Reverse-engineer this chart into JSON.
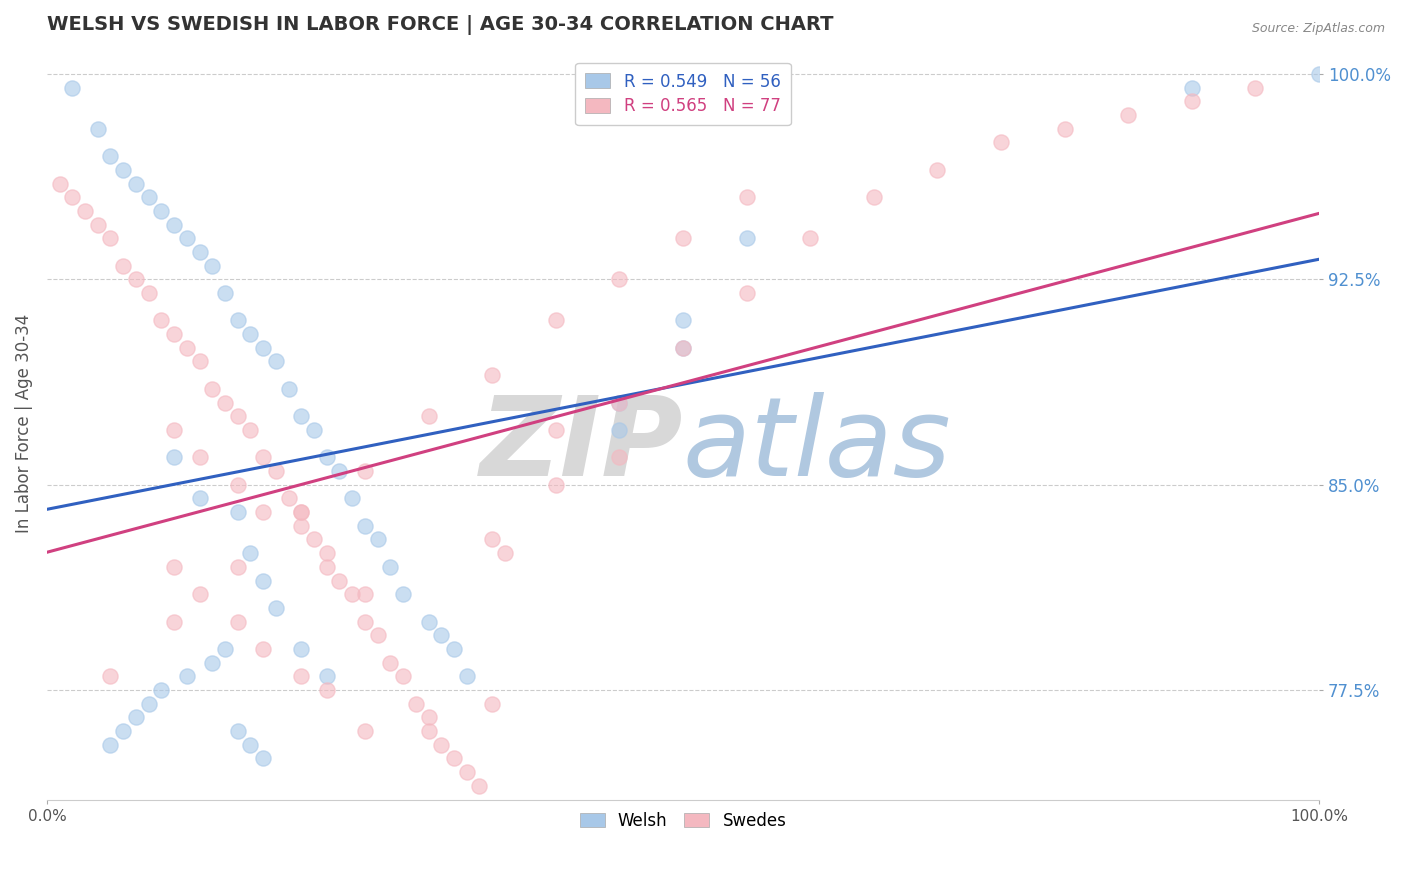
{
  "title": "WELSH VS SWEDISH IN LABOR FORCE | AGE 30-34 CORRELATION CHART",
  "source": "Source: ZipAtlas.com",
  "ylabel": "In Labor Force | Age 30-34",
  "xlim": [
    0.0,
    1.0
  ],
  "ylim": [
    0.735,
    1.01
  ],
  "yticks": [
    0.775,
    0.85,
    0.925,
    1.0
  ],
  "ytick_labels": [
    "77.5%",
    "85.0%",
    "92.5%",
    "100.0%"
  ],
  "xtick_labels_show": [
    "0.0%",
    "100.0%"
  ],
  "xtick_pos_show": [
    0.0,
    1.0
  ],
  "welsh_color": "#a8c8e8",
  "swedes_color": "#f4b8c0",
  "welsh_line_color": "#3060c0",
  "swedes_line_color": "#d04080",
  "welsh_R": 0.549,
  "welsh_N": 56,
  "swedes_R": 0.565,
  "swedes_N": 77,
  "watermark_zip_color": "#d8d8d8",
  "watermark_atlas_color": "#b0c8e0",
  "background_color": "#ffffff",
  "grid_color": "#cccccc",
  "ytick_color": "#5090d0",
  "welsh_x": [
    0.02,
    0.04,
    0.05,
    0.06,
    0.07,
    0.08,
    0.09,
    0.1,
    0.11,
    0.12,
    0.13,
    0.14,
    0.15,
    0.16,
    0.17,
    0.18,
    0.19,
    0.2,
    0.21,
    0.22,
    0.23,
    0.24,
    0.25,
    0.26,
    0.27,
    0.28,
    0.3,
    0.31,
    0.32,
    0.33,
    0.1,
    0.12,
    0.15,
    0.16,
    0.17,
    0.18,
    0.2,
    0.22,
    0.14,
    0.13,
    0.11,
    0.09,
    0.08,
    0.07,
    0.06,
    0.05,
    0.15,
    0.16,
    0.17,
    0.45,
    0.5,
    0.45,
    0.5,
    0.55,
    0.9,
    1.0
  ],
  "welsh_y": [
    0.995,
    0.98,
    0.97,
    0.965,
    0.96,
    0.955,
    0.95,
    0.945,
    0.94,
    0.935,
    0.93,
    0.92,
    0.91,
    0.905,
    0.9,
    0.895,
    0.885,
    0.875,
    0.87,
    0.86,
    0.855,
    0.845,
    0.835,
    0.83,
    0.82,
    0.81,
    0.8,
    0.795,
    0.79,
    0.78,
    0.86,
    0.845,
    0.84,
    0.825,
    0.815,
    0.805,
    0.79,
    0.78,
    0.79,
    0.785,
    0.78,
    0.775,
    0.77,
    0.765,
    0.76,
    0.755,
    0.76,
    0.755,
    0.75,
    0.88,
    0.91,
    0.87,
    0.9,
    0.94,
    0.995,
    1.0
  ],
  "swedes_x": [
    0.01,
    0.02,
    0.03,
    0.04,
    0.05,
    0.06,
    0.07,
    0.08,
    0.09,
    0.1,
    0.11,
    0.12,
    0.13,
    0.14,
    0.15,
    0.16,
    0.17,
    0.18,
    0.19,
    0.2,
    0.21,
    0.22,
    0.23,
    0.24,
    0.25,
    0.26,
    0.27,
    0.28,
    0.29,
    0.3,
    0.31,
    0.32,
    0.33,
    0.34,
    0.35,
    0.36,
    0.1,
    0.12,
    0.15,
    0.17,
    0.2,
    0.22,
    0.25,
    0.1,
    0.12,
    0.15,
    0.17,
    0.2,
    0.22,
    0.25,
    0.3,
    0.35,
    0.4,
    0.4,
    0.45,
    0.45,
    0.5,
    0.55,
    0.6,
    0.65,
    0.7,
    0.75,
    0.8,
    0.85,
    0.9,
    0.95,
    0.05,
    0.1,
    0.15,
    0.2,
    0.25,
    0.3,
    0.35,
    0.4,
    0.45,
    0.5,
    0.55
  ],
  "swedes_y": [
    0.96,
    0.955,
    0.95,
    0.945,
    0.94,
    0.93,
    0.925,
    0.92,
    0.91,
    0.905,
    0.9,
    0.895,
    0.885,
    0.88,
    0.875,
    0.87,
    0.86,
    0.855,
    0.845,
    0.84,
    0.83,
    0.825,
    0.815,
    0.81,
    0.8,
    0.795,
    0.785,
    0.78,
    0.77,
    0.765,
    0.755,
    0.75,
    0.745,
    0.74,
    0.83,
    0.825,
    0.87,
    0.86,
    0.85,
    0.84,
    0.835,
    0.82,
    0.81,
    0.82,
    0.81,
    0.8,
    0.79,
    0.78,
    0.775,
    0.76,
    0.76,
    0.77,
    0.87,
    0.85,
    0.88,
    0.86,
    0.9,
    0.92,
    0.94,
    0.955,
    0.965,
    0.975,
    0.98,
    0.985,
    0.99,
    0.995,
    0.78,
    0.8,
    0.82,
    0.84,
    0.855,
    0.875,
    0.89,
    0.91,
    0.925,
    0.94,
    0.955
  ]
}
